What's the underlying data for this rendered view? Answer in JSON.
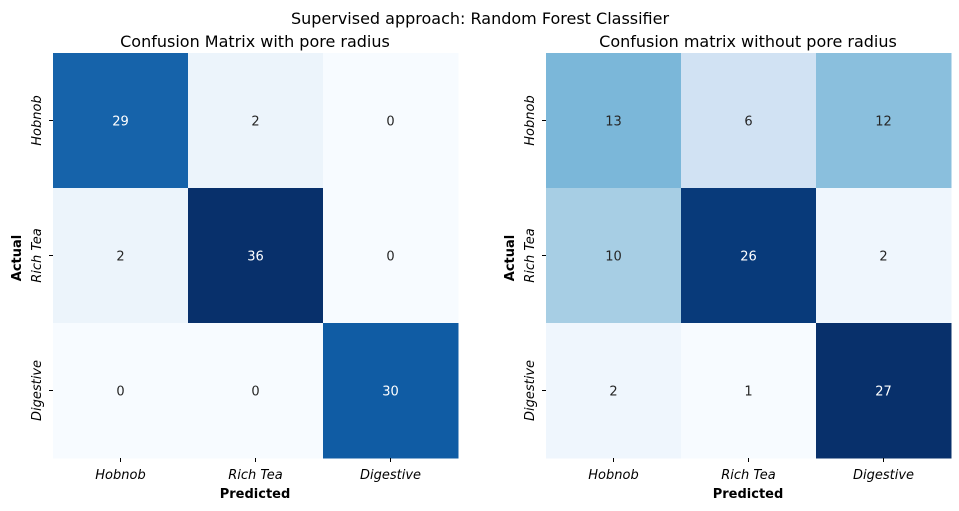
{
  "suptitle": "Supervised approach: Random Forest Classifier",
  "colors": {
    "low": "#f7fbff",
    "high": "#08306b",
    "text_dark": "#262626",
    "text_light": "#ffffff"
  },
  "chart_data": [
    {
      "type": "heatmap",
      "title": "Confusion Matrix with pore radius",
      "xlabel": "Predicted",
      "ylabel": "Actual",
      "x_categories": [
        "Hobnob",
        "Rich Tea",
        "Digestive"
      ],
      "y_categories": [
        "Hobnob",
        "Rich Tea",
        "Digestive"
      ],
      "values": [
        [
          29,
          2,
          0
        ],
        [
          2,
          36,
          0
        ],
        [
          0,
          0,
          30
        ]
      ],
      "colormap": "Blues",
      "colorbar": false
    },
    {
      "type": "heatmap",
      "title": "Confusion matrix without pore radius",
      "xlabel": "Predicted",
      "ylabel": "Actual",
      "x_categories": [
        "Hobnob",
        "Rich Tea",
        "Digestive"
      ],
      "y_categories": [
        "Hobnob",
        "Rich Tea",
        "Digestive"
      ],
      "values": [
        [
          13,
          6,
          12
        ],
        [
          10,
          26,
          2
        ],
        [
          2,
          1,
          27
        ]
      ],
      "colormap": "Blues",
      "colorbar": false
    }
  ]
}
